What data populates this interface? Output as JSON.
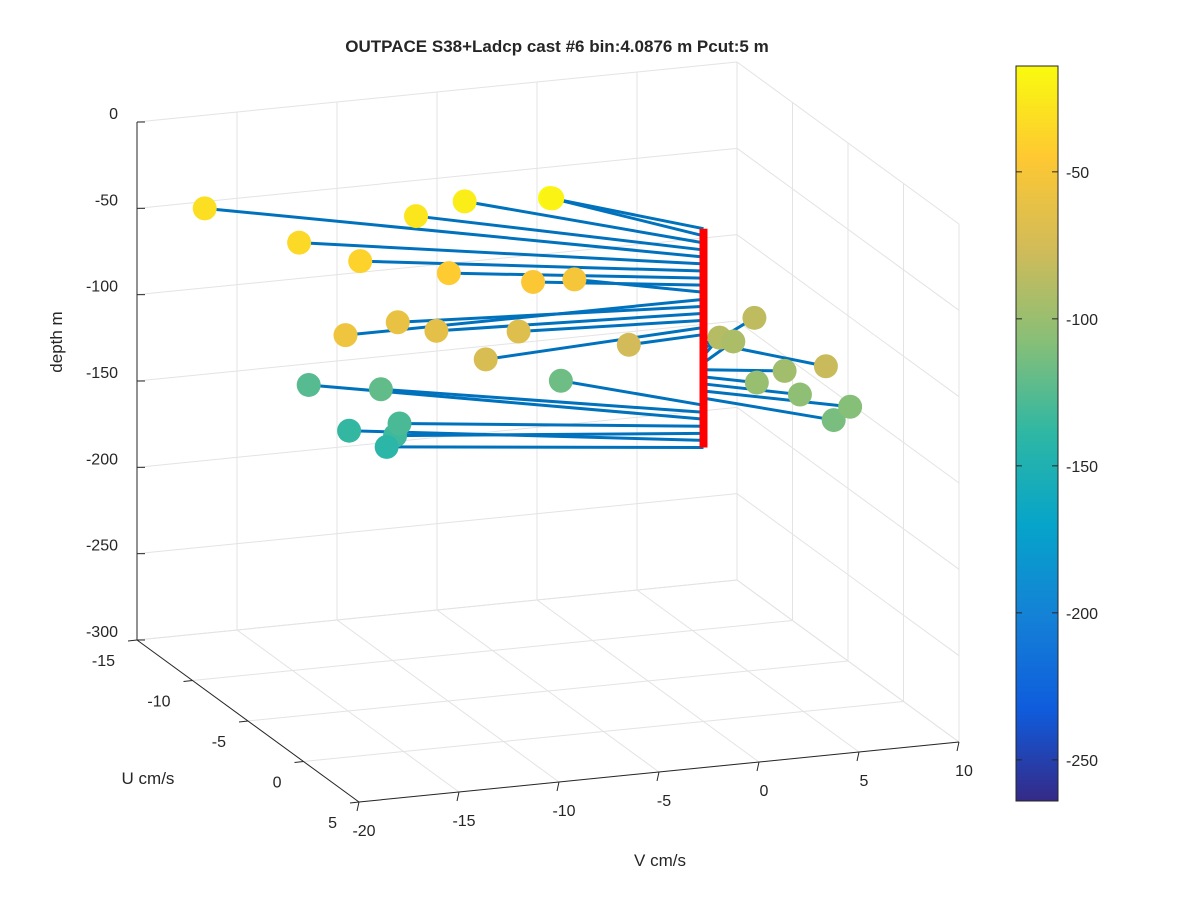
{
  "chart_data": {
    "type": "scatter3d",
    "title": "OUTPACE S38+Ladcp cast #6 bin:4.0876 m  Pcut:5 m",
    "xlabel": "U cm/s",
    "ylabel": "V cm/s",
    "zlabel": "depth m",
    "xlim": [
      -15,
      5
    ],
    "ylim": [
      -20,
      10
    ],
    "zlim": [
      -300,
      0
    ],
    "xticks": [
      "-15",
      "-10",
      "-5",
      "0",
      "5"
    ],
    "yticks": [
      "-20",
      "-15",
      "-10",
      "-5",
      "0",
      "5",
      "10"
    ],
    "zticks": [
      "0",
      "-50",
      "-100",
      "-150",
      "-200",
      "-250",
      "-300"
    ],
    "grid": true,
    "colorbar": {
      "range": [
        -264,
        -14
      ],
      "ticks": [
        "-50",
        "-100",
        "-150",
        "-200",
        "-250"
      ],
      "colormap": "parula"
    },
    "profile_color": "#ff0000",
    "stem_color": "#0072bd",
    "points": [
      {
        "depth": -14.6,
        "u": -5.0,
        "v": -4.9
      },
      {
        "depth": -18.7,
        "u": -5.7,
        "v": -4.4
      },
      {
        "depth": -22.8,
        "u": -7.1,
        "v": -8.0
      },
      {
        "depth": -26.9,
        "u": -6.8,
        "v": -10.6
      },
      {
        "depth": -31.0,
        "u": -10.7,
        "v": -19.0
      },
      {
        "depth": -35.0,
        "u": -6.7,
        "v": -16.5
      },
      {
        "depth": -39.1,
        "u": -4.8,
        "v": -14.5
      },
      {
        "depth": -43.2,
        "u": -3.3,
        "v": -10.9
      },
      {
        "depth": -47.3,
        "u": -2.2,
        "v": -7.3
      },
      {
        "depth": -51.4,
        "u": -2.8,
        "v": -4.9
      },
      {
        "depth": -55.5,
        "u": 0.0,
        "v": -17.9
      },
      {
        "depth": -59.6,
        "u": -1.6,
        "v": -14.4
      },
      {
        "depth": -63.6,
        "u": -1.0,
        "v": -12.8
      },
      {
        "depth": -67.7,
        "u": -0.8,
        "v": -8.8
      },
      {
        "depth": -71.8,
        "u": 1.1,
        "v": -11.5
      },
      {
        "depth": -75.9,
        "u": 0.3,
        "v": -3.9
      },
      {
        "depth": -80.0,
        "u": 4.0,
        "v": 3.9
      },
      {
        "depth": -84.1,
        "u": -2.8,
        "v": 4.1
      },
      {
        "depth": -88.2,
        "u": -1.8,
        "v": 1.8
      },
      {
        "depth": -92.3,
        "u": -2.0,
        "v": 2.6
      },
      {
        "depth": -96.3,
        "u": 1.0,
        "v": 3.5
      },
      {
        "depth": -100.4,
        "u": 1.2,
        "v": 2.0
      },
      {
        "depth": -104.5,
        "u": 2.2,
        "v": 3.6
      },
      {
        "depth": -108.6,
        "u": 3.3,
        "v": 5.5
      },
      {
        "depth": -112.7,
        "u": 3.8,
        "v": 4.4
      },
      {
        "depth": -116.8,
        "u": -4.2,
        "v": -4.8
      },
      {
        "depth": -120.9,
        "u": -6.0,
        "v": -12.8
      },
      {
        "depth": -124.9,
        "u": -8.0,
        "v": -15.3
      },
      {
        "depth": -129.0,
        "u": -3.6,
        "v": -13.2
      },
      {
        "depth": -133.1,
        "u": -3.1,
        "v": -13.7
      },
      {
        "depth": -137.2,
        "u": -4.9,
        "v": -15.0
      },
      {
        "depth": -141.3,
        "u": -3.5,
        "v": -13.9
      }
    ]
  }
}
